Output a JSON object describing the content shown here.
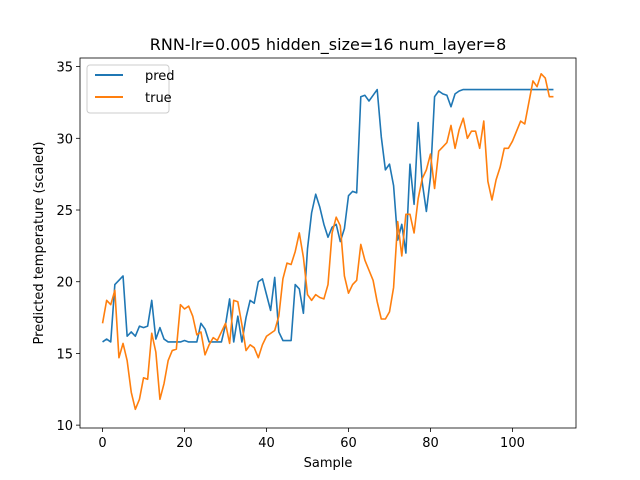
{
  "chart_data": {
    "type": "line",
    "title": "RNN-lr=0.005 hidden_size=16 num_layer=8",
    "xlabel": "Sample",
    "ylabel": "Predicted temperature (scaled)",
    "xlim": [
      -5.5,
      115.5
    ],
    "ylim": [
      9.8,
      35.6
    ],
    "xticks": [
      0,
      20,
      40,
      60,
      80,
      100
    ],
    "yticks": [
      10,
      15,
      20,
      25,
      30,
      35
    ],
    "grid": false,
    "legend_position": "top-left",
    "series": [
      {
        "name": "pred",
        "color": "#1f77b4",
        "values": [
          15.8,
          16.0,
          15.8,
          19.8,
          20.1,
          20.4,
          16.2,
          16.5,
          16.2,
          16.9,
          16.8,
          16.9,
          18.7,
          16.0,
          16.8,
          16.0,
          15.8,
          15.8,
          15.8,
          15.8,
          15.9,
          15.8,
          15.8,
          15.8,
          17.1,
          16.7,
          15.8,
          15.8,
          15.8,
          15.8,
          17.0,
          18.8,
          15.8,
          17.6,
          15.8,
          17.5,
          18.7,
          18.5,
          20.0,
          20.2,
          19.1,
          18.0,
          20.3,
          16.5,
          15.9,
          15.9,
          15.9,
          19.8,
          19.5,
          17.8,
          22.3,
          24.8,
          26.1,
          25.2,
          24.0,
          23.1,
          23.8,
          24.0,
          22.8,
          23.7,
          26.0,
          26.3,
          26.2,
          32.9,
          33.0,
          32.6,
          33.0,
          33.4,
          30.1,
          27.8,
          28.2,
          26.7,
          22.9,
          24.0,
          22.0,
          28.2,
          25.4,
          31.1,
          26.9,
          24.9,
          27.3,
          32.9,
          33.3,
          33.1,
          33.0,
          32.2,
          33.1,
          33.3,
          33.4,
          33.4,
          33.4,
          33.4,
          33.4,
          33.4,
          33.4,
          33.4,
          33.4,
          33.4,
          33.4,
          33.4,
          33.4,
          33.4,
          33.4,
          33.4,
          33.4,
          33.4,
          33.4,
          33.4,
          33.4,
          33.4,
          33.4
        ]
      },
      {
        "name": "true",
        "color": "#ff7f0e",
        "values": [
          17.1,
          18.7,
          18.4,
          19.4,
          14.7,
          15.7,
          14.5,
          12.3,
          11.1,
          11.8,
          13.3,
          13.2,
          16.4,
          15.1,
          11.8,
          12.9,
          14.5,
          15.2,
          15.3,
          18.4,
          18.1,
          18.3,
          17.6,
          16.3,
          16.5,
          14.9,
          15.6,
          16.1,
          15.9,
          16.5,
          17.1,
          15.7,
          18.7,
          18.6,
          17.0,
          15.2,
          15.6,
          15.4,
          14.7,
          15.6,
          16.2,
          16.4,
          16.6,
          17.6,
          20.2,
          21.3,
          21.2,
          22.1,
          23.4,
          21.7,
          19.1,
          18.7,
          19.1,
          18.9,
          18.8,
          19.8,
          23.4,
          24.5,
          23.9,
          20.4,
          19.2,
          19.8,
          20.1,
          22.6,
          21.5,
          20.8,
          20.1,
          18.6,
          17.4,
          17.4,
          17.9,
          19.6,
          24.2,
          21.8,
          24.7,
          24.7,
          23.4,
          25.8,
          27.2,
          27.8,
          28.9,
          26.5,
          29.1,
          29.4,
          29.7,
          30.9,
          29.3,
          30.6,
          31.4,
          30.0,
          30.5,
          30.5,
          29.3,
          31.2,
          27.0,
          25.7,
          27.1,
          28.0,
          29.3,
          29.3,
          29.8,
          30.5,
          31.2,
          31.0,
          32.5,
          34.0,
          33.6,
          34.5,
          34.2,
          32.9,
          32.9
        ]
      }
    ]
  }
}
